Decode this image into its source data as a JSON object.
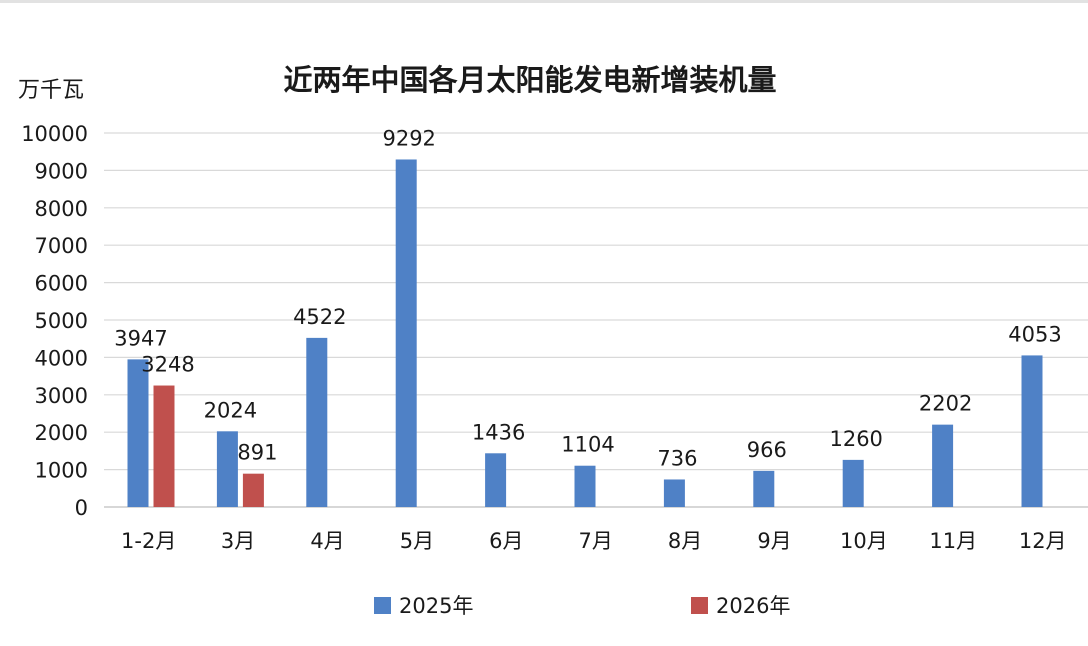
{
  "chart_data": {
    "type": "bar",
    "title": "近两年中国各月太阳能发电新增装机量",
    "ylabel": "万千瓦",
    "xlabel": "",
    "ylim": [
      0,
      10000
    ],
    "yticks": [
      0,
      1000,
      2000,
      3000,
      4000,
      5000,
      6000,
      7000,
      8000,
      9000,
      10000
    ],
    "grid": true,
    "legend_position": "bottom",
    "categories": [
      "1-2月",
      "3月",
      "4月",
      "5月",
      "6月",
      "7月",
      "8月",
      "9月",
      "10月",
      "11月",
      "12月"
    ],
    "series": [
      {
        "name": "2025年",
        "color": "#4f81c6",
        "values": [
          3947,
          2024,
          4522,
          9292,
          1436,
          1104,
          736,
          966,
          1260,
          2202,
          4053
        ]
      },
      {
        "name": "2026年",
        "color": "#c0504d",
        "values": [
          3248,
          891,
          null,
          null,
          null,
          null,
          null,
          null,
          null,
          null,
          null
        ]
      }
    ]
  }
}
